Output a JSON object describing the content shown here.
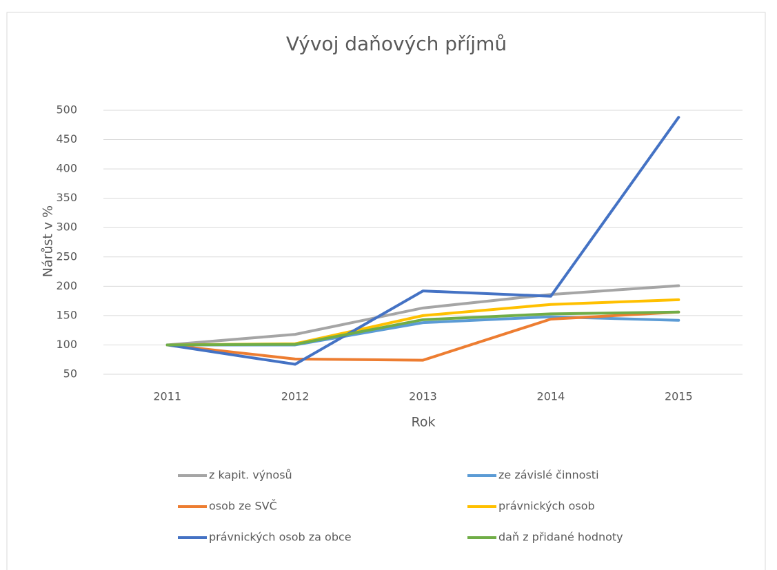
{
  "chart_data": {
    "type": "line",
    "title": "Vývoj daňových příjmů",
    "x_label": "Rok",
    "y_label": "Nárůst v %",
    "categories": [
      "2011",
      "2012",
      "2013",
      "2014",
      "2015"
    ],
    "series": [
      {
        "name": "z kapit. výnosů",
        "color": "#a5a5a5",
        "values": [
          100,
          118,
          163,
          186,
          201
        ]
      },
      {
        "name": "ze závislé činnosti",
        "color": "#5b9bd5",
        "values": [
          100,
          100,
          138,
          148,
          142
        ]
      },
      {
        "name": "osob ze SVČ",
        "color": "#ed7d31",
        "values": [
          100,
          76,
          74,
          144,
          156
        ]
      },
      {
        "name": "právnických osob",
        "color": "#ffc000",
        "values": [
          100,
          102,
          150,
          169,
          177
        ]
      },
      {
        "name": "právnických osob za obce",
        "color": "#4472c4",
        "values": [
          100,
          67,
          192,
          183,
          488
        ]
      },
      {
        "name": "daň z přidané hodnoty",
        "color": "#70ad47",
        "values": [
          100,
          101,
          143,
          153,
          156
        ]
      }
    ],
    "ylim": [
      50,
      500
    ],
    "yticks": [
      50,
      100,
      150,
      200,
      250,
      300,
      350,
      400,
      450,
      500
    ],
    "grid": true,
    "legend": "bottom"
  }
}
